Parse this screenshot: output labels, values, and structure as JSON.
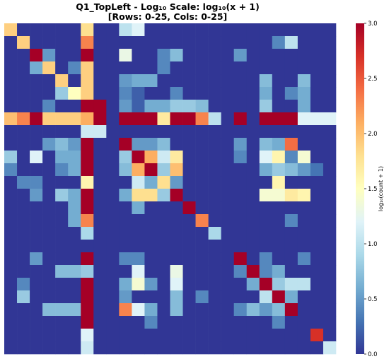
{
  "chart_data": {
    "type": "heatmap",
    "title": "Q1_TopLeft - Log₁₀ Scale: log₁₀(x + 1)",
    "subtitle": "[Rows: 0-25, Cols: 0-25]",
    "colorbar_label": "log₁₀(count + 1)",
    "colormap": "RdYlBu_r",
    "vmin": 0,
    "vmax": 3.0,
    "colorbar_ticks": [
      "0.0",
      "0.5",
      "1.0",
      "1.5",
      "2.0",
      "2.5",
      "3.0"
    ],
    "colorbar_tick_values": [
      0,
      0.5,
      1.0,
      1.5,
      2.0,
      2.5,
      3.0
    ],
    "xticklabels": [],
    "yticklabels": [],
    "rows": 26,
    "cols": 26,
    "values": [
      [
        1.9,
        0,
        0,
        0,
        0,
        0,
        1.8,
        0,
        0,
        1.0,
        1.2,
        0,
        0,
        0,
        0,
        0,
        0,
        0,
        0,
        0,
        0,
        0,
        0,
        0,
        0,
        0
      ],
      [
        0,
        1.9,
        0,
        0,
        0,
        0,
        2.3,
        0,
        0,
        0,
        0,
        0,
        0,
        0,
        0,
        0,
        0,
        0,
        0,
        0,
        0,
        0.4,
        1.0,
        0,
        0,
        0
      ],
      [
        0,
        0,
        3.0,
        0.5,
        0,
        0,
        3.0,
        0,
        0,
        1.3,
        0,
        0,
        0.4,
        0.7,
        0,
        0,
        0,
        0,
        0.5,
        0,
        0,
        0,
        0,
        0,
        0,
        0
      ],
      [
        0,
        0,
        0.6,
        1.9,
        0,
        0.4,
        1.9,
        0,
        0,
        0,
        0,
        0,
        0.4,
        0,
        0,
        0,
        0,
        0,
        0,
        0,
        0,
        0,
        0,
        0,
        0,
        0
      ],
      [
        0,
        0,
        0,
        0,
        1.9,
        0,
        1.9,
        0,
        0,
        0.5,
        0.6,
        0.6,
        0,
        0,
        0,
        0,
        0,
        0,
        0,
        0,
        0.7,
        0,
        0,
        0.7,
        0,
        0
      ],
      [
        0,
        0,
        0,
        0,
        0.8,
        1.5,
        1.9,
        0,
        0,
        0.4,
        0.2,
        0,
        0,
        0.4,
        0,
        0,
        0,
        0,
        0,
        0,
        0.6,
        0,
        0.4,
        0.6,
        0,
        0
      ],
      [
        0,
        0,
        0,
        0.4,
        0,
        0,
        3.0,
        3.0,
        0,
        0.5,
        0.2,
        0.6,
        0.6,
        0.8,
        0.8,
        0.7,
        0,
        0,
        0,
        0,
        0.8,
        0,
        0,
        0.6,
        0,
        0
      ],
      [
        2.0,
        2.3,
        3.0,
        1.9,
        1.9,
        1.9,
        2.1,
        3.0,
        0,
        3.0,
        3.0,
        3.0,
        1.7,
        3.0,
        3.0,
        2.3,
        1.0,
        0,
        3.0,
        0,
        3.0,
        3.0,
        3.0,
        1.2,
        1.2,
        1.2
      ],
      [
        0,
        0,
        0,
        0,
        0,
        0,
        1.1,
        1.1,
        0,
        0,
        0,
        0,
        0,
        0,
        0,
        0,
        0,
        0,
        0,
        0,
        0,
        0,
        0,
        0,
        0,
        0
      ],
      [
        0,
        0,
        0,
        0.5,
        0.7,
        0.5,
        3.0,
        0,
        0,
        3.0,
        0.5,
        0.5,
        0.7,
        0,
        0,
        0,
        0,
        0,
        0.5,
        0,
        0.7,
        0.6,
        2.4,
        0,
        0,
        0
      ],
      [
        0.8,
        0,
        1.2,
        0,
        0.6,
        0.6,
        3.0,
        0,
        0,
        0.8,
        3.0,
        2.1,
        1.1,
        1.7,
        0,
        0,
        0,
        0,
        0.4,
        0,
        1.2,
        1.6,
        0.4,
        1.4,
        0,
        0
      ],
      [
        0.4,
        0,
        0,
        0,
        0.4,
        0.6,
        3.0,
        0,
        0,
        0.7,
        2.1,
        3.0,
        0.8,
        2.0,
        0,
        0,
        0,
        0,
        0,
        0,
        0.6,
        0.8,
        0.7,
        0.5,
        0.3,
        0
      ],
      [
        0,
        0.4,
        0.4,
        0,
        0,
        0,
        1.6,
        0,
        0,
        0,
        1.1,
        0.6,
        1.8,
        0.5,
        0,
        0,
        0,
        0,
        0,
        0,
        0,
        1.6,
        0,
        0,
        0,
        0
      ],
      [
        0,
        0,
        0.5,
        0,
        0.8,
        0.6,
        3.0,
        0,
        0,
        0.6,
        1.8,
        1.8,
        0.8,
        3.0,
        0,
        0,
        0,
        0,
        0,
        0,
        1.4,
        1.4,
        1.7,
        1.6,
        0,
        0
      ],
      [
        0,
        0,
        0,
        0,
        0,
        0.6,
        3.0,
        0,
        0,
        0,
        0.6,
        0,
        0,
        0,
        3.0,
        0,
        0,
        0,
        0,
        0,
        0,
        0,
        0,
        0,
        0,
        0
      ],
      [
        0,
        0,
        0,
        0,
        0,
        0.6,
        2.3,
        0,
        0,
        0,
        0,
        0,
        0,
        0,
        0,
        2.3,
        0,
        0,
        0,
        0,
        0,
        0,
        0.4,
        0,
        0,
        0
      ],
      [
        0,
        0,
        0,
        0,
        0,
        0,
        0.9,
        0,
        0,
        0,
        0,
        0,
        0,
        0,
        0,
        0,
        0.9,
        0,
        0,
        0,
        0,
        0,
        0,
        0,
        0,
        0
      ],
      [
        0,
        0,
        0,
        0,
        0,
        0,
        0,
        0,
        0,
        0,
        0,
        0,
        0,
        0,
        0,
        0,
        0,
        0,
        0,
        0,
        0,
        0,
        0,
        0,
        0,
        0
      ],
      [
        0,
        0,
        0.5,
        0,
        0,
        0,
        3.0,
        0,
        0,
        0.4,
        0.4,
        0,
        0,
        0,
        0,
        0,
        0,
        0,
        3.0,
        0,
        0.4,
        0,
        0,
        0.4,
        0,
        0
      ],
      [
        0,
        0,
        0,
        0,
        0.7,
        0.7,
        0.8,
        0,
        0,
        0,
        1.2,
        0,
        0,
        1.3,
        0,
        0,
        0,
        0,
        0.4,
        3.0,
        0.4,
        0.6,
        0,
        0,
        0,
        0
      ],
      [
        0,
        0.4,
        0,
        0,
        0,
        0,
        3.0,
        0,
        0,
        0.6,
        1.4,
        0.5,
        0,
        1.2,
        0,
        0,
        0,
        0,
        0,
        0.6,
        3.0,
        0.8,
        1.0,
        1.0,
        0,
        0
      ],
      [
        0,
        0.8,
        0,
        0,
        0,
        0,
        3.0,
        0,
        0,
        0.5,
        0,
        0,
        0,
        0.7,
        0,
        0.4,
        0,
        0,
        0,
        0,
        1.0,
        3.0,
        0.6,
        0,
        0,
        0
      ],
      [
        0,
        0,
        0,
        0.7,
        0.7,
        0.7,
        3.0,
        0,
        0,
        2.3,
        1.2,
        0.6,
        0,
        0.7,
        0,
        0,
        0,
        0,
        0.4,
        0.7,
        0.5,
        0.7,
        3.0,
        0,
        0,
        0
      ],
      [
        0,
        0,
        0,
        0,
        0,
        0,
        3.0,
        0,
        0,
        0,
        0,
        0.4,
        0,
        0,
        0,
        0,
        0,
        0,
        0,
        0,
        0,
        0.4,
        0,
        0,
        0,
        0
      ],
      [
        0,
        0,
        0,
        0,
        0,
        0,
        1.2,
        0,
        0,
        0,
        0,
        0,
        0,
        0,
        0,
        0,
        0,
        0,
        0,
        0,
        0,
        0,
        0,
        0,
        2.7,
        0
      ],
      [
        0,
        0,
        0,
        0,
        0,
        0,
        1.1,
        0,
        0,
        0,
        0,
        0,
        0,
        0,
        0,
        0,
        0,
        0,
        0,
        0,
        0,
        0,
        0,
        0,
        0,
        1.1
      ]
    ]
  }
}
